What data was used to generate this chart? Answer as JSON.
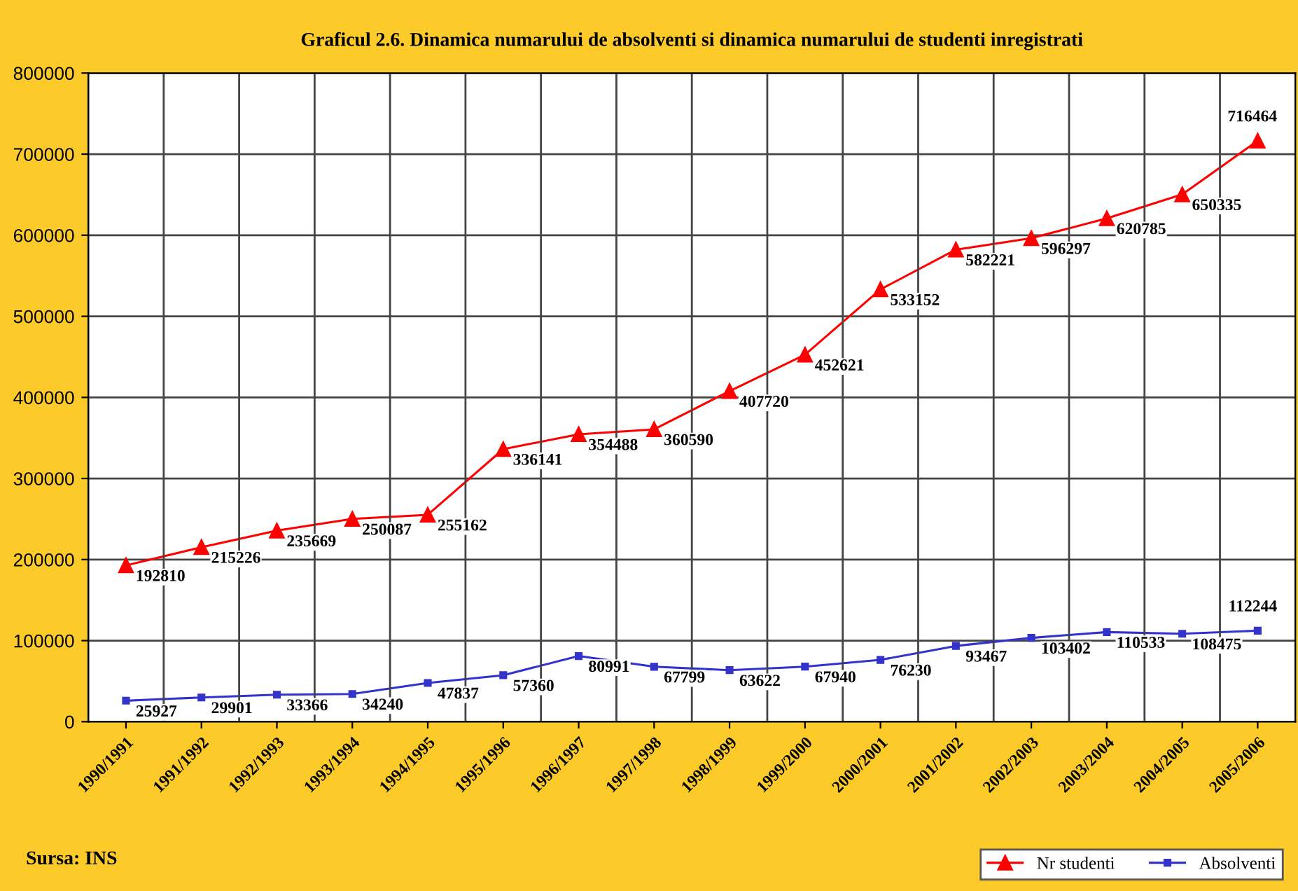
{
  "chart_data": {
    "type": "line",
    "title": "Graficul 2.6. Dinamica numarului de absolventi si dinamica numarului de studenti inregistrati",
    "categories": [
      "1990/1991",
      "1991/1992",
      "1992/1993",
      "1993/1994",
      "1994/1995",
      "1995/1996",
      "1996/1997",
      "1997/1998",
      "1998/1999",
      "1999/2000",
      "2000/2001",
      "2001/2002",
      "2002/2003",
      "2003/2004",
      "2004/2005",
      "2005/2006"
    ],
    "series": [
      {
        "name": "Nr studenti",
        "color": "#ff0000",
        "marker": "triangle",
        "values": [
          192810,
          215226,
          235669,
          250087,
          255162,
          336141,
          354488,
          360590,
          407720,
          452621,
          533152,
          582221,
          596297,
          620785,
          650335,
          716464
        ]
      },
      {
        "name": "Absolventi",
        "color": "#3333cc",
        "marker": "square",
        "values": [
          25927,
          29901,
          33366,
          34240,
          47837,
          57360,
          80991,
          67799,
          63622,
          67940,
          76230,
          93467,
          103402,
          110533,
          108475,
          112244
        ]
      }
    ],
    "ylim": [
      0,
      800000
    ],
    "yticks": [
      0,
      100000,
      200000,
      300000,
      400000,
      500000,
      600000,
      700000,
      800000
    ],
    "grid": true,
    "legend": "bottom right",
    "data_labels": true,
    "line_style": "solid",
    "annotations": [
      "Sursa: INS"
    ]
  }
}
